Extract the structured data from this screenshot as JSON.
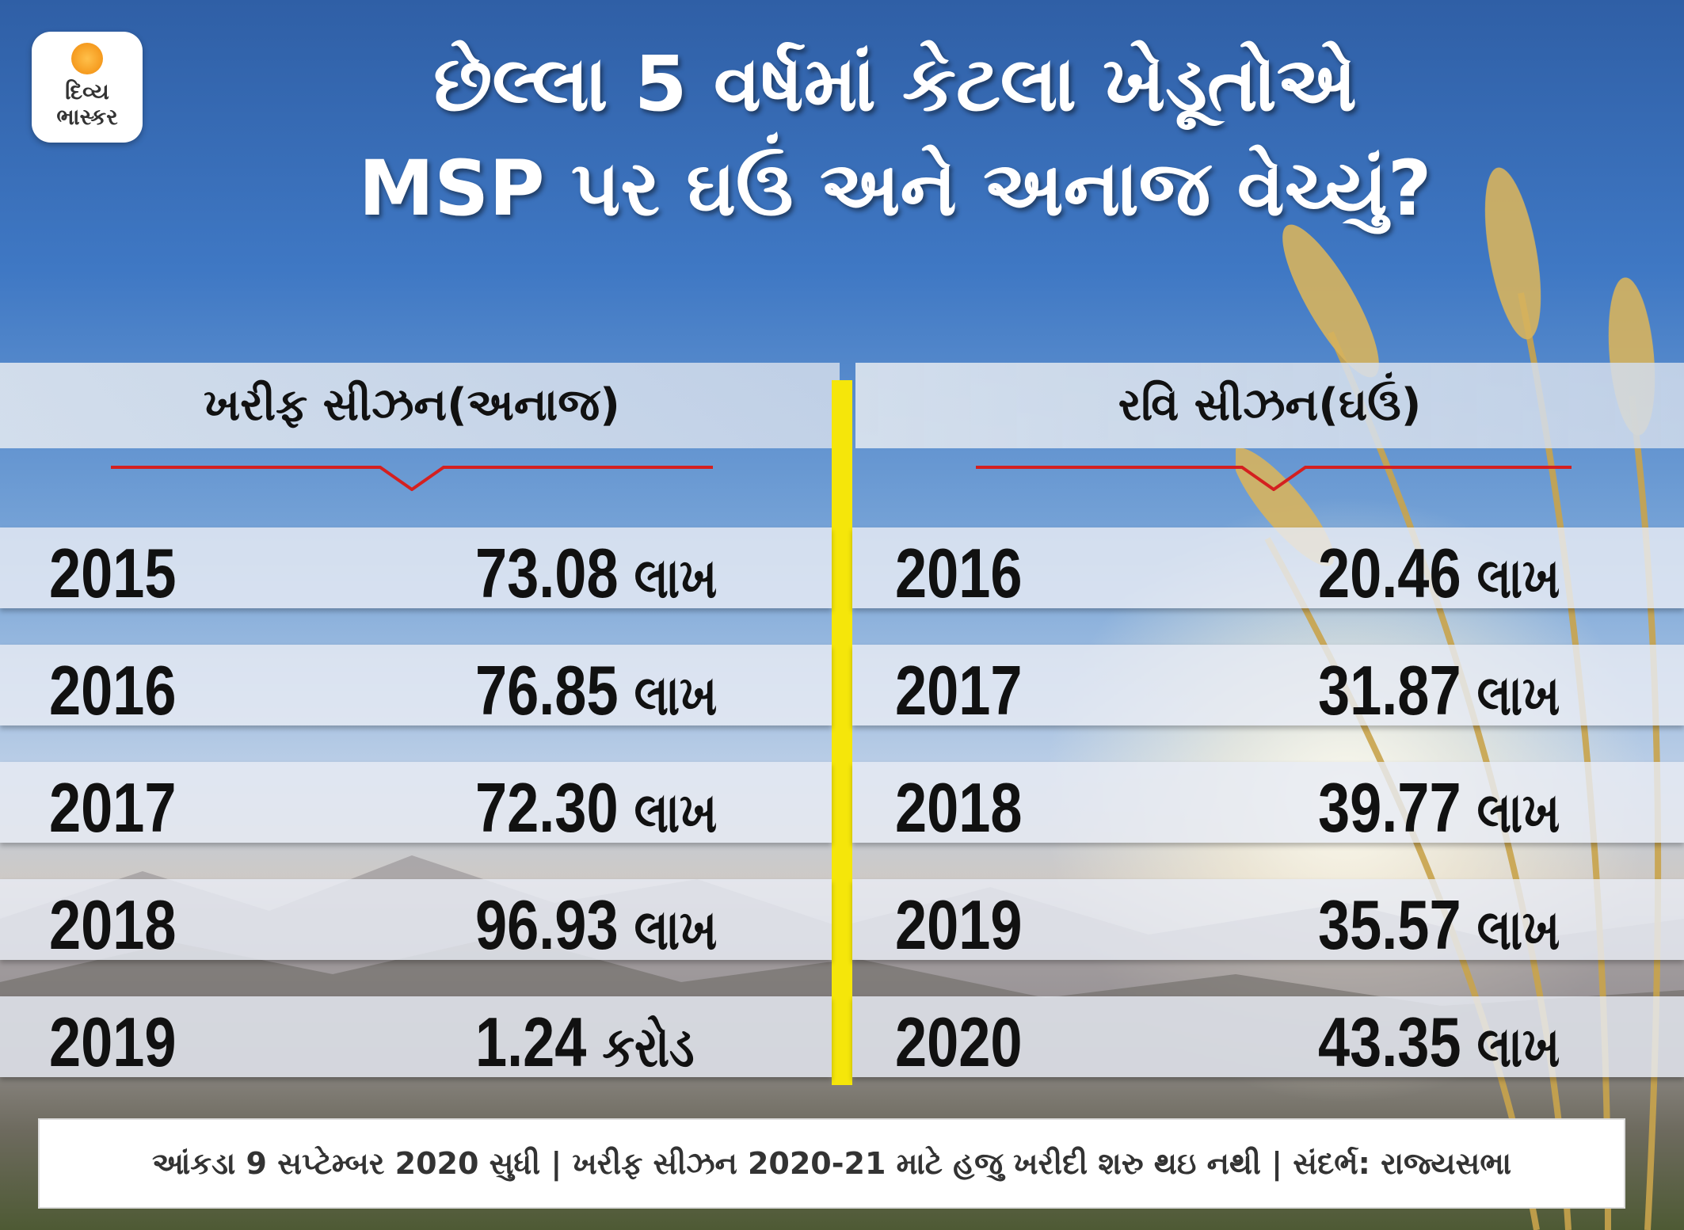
{
  "logo": {
    "text": "દિવ્ય ભાસ્કર"
  },
  "title": {
    "line1": "છેલ્લા 5 વર્ષમાં કેટલા ખેડૂતોએ",
    "line2": "MSP પર ઘઉં અને અનાજ વેચ્યું?"
  },
  "kharif": {
    "header": "ખરીફ સીઝન(અનાજ)",
    "rows": [
      {
        "year": "2015",
        "value": "73.08",
        "unit": "લાખ"
      },
      {
        "year": "2016",
        "value": "76.85",
        "unit": "લાખ"
      },
      {
        "year": "2017",
        "value": "72.30",
        "unit": "લાખ"
      },
      {
        "year": "2018",
        "value": "96.93",
        "unit": "લાખ"
      },
      {
        "year": "2019",
        "value": "1.24",
        "unit": "કરોડ"
      }
    ]
  },
  "rabi": {
    "header": "રવિ સીઝન(ઘઉં)",
    "rows": [
      {
        "year": "2016",
        "value": "20.46",
        "unit": "લાખ"
      },
      {
        "year": "2017",
        "value": "31.87",
        "unit": "લાખ"
      },
      {
        "year": "2018",
        "value": "39.77",
        "unit": "લાખ"
      },
      {
        "year": "2019",
        "value": "35.57",
        "unit": "લાખ"
      },
      {
        "year": "2020",
        "value": "43.35",
        "unit": "લાખ"
      }
    ]
  },
  "footer": {
    "text": "આંકડા 9 સપ્ટેમ્બર 2020 સુધી | ખરીફ સીઝન 2020-21 માટે હજુ ખરીદી શરુ થઇ નથી | સંદર્ભ: રાજ્યસભા"
  },
  "colors": {
    "divider": "#f5e60a",
    "accent_line": "#d42020",
    "sky_top": "#2f5fa6"
  }
}
